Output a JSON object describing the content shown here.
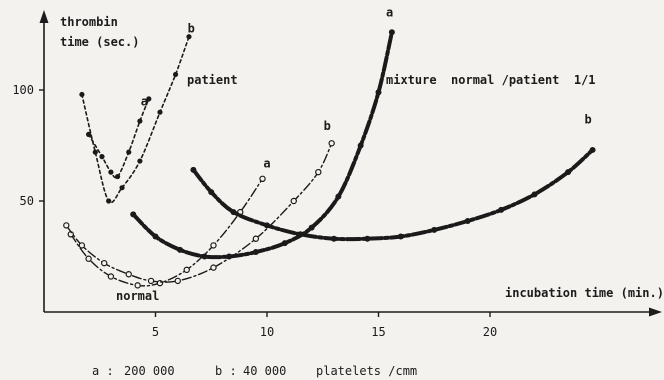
{
  "chart_data": {
    "type": "line",
    "ylabel_line1": "thrombin",
    "ylabel_line2": "time (sec.)",
    "xlabel": "incubation time (min.)",
    "x_ticks": [
      "5",
      "10",
      "15",
      "20"
    ],
    "y_ticks": [
      "50",
      "100"
    ],
    "xlim": [
      0,
      26
    ],
    "ylim": [
      0,
      120
    ],
    "grid": false,
    "legend_note": {
      "a_key": "a :",
      "a_value": "200 000",
      "b_key": "b :",
      "b_value": "40 000",
      "unit": "platelets /cmm"
    },
    "group_labels": {
      "patient": "patient",
      "normal": "normal",
      "mixture": "mixture  normal /patient  1/1"
    },
    "series": [
      {
        "name": "a",
        "group": "patient",
        "style": "dotted",
        "label_at": [
          4.5,
          93
        ],
        "points": [
          [
            2.0,
            80
          ],
          [
            2.6,
            70
          ],
          [
            3.0,
            63
          ],
          [
            3.3,
            61
          ],
          [
            3.8,
            72
          ],
          [
            4.3,
            86
          ],
          [
            4.7,
            96
          ]
        ]
      },
      {
        "name": "b",
        "group": "patient",
        "style": "dotted",
        "label_at": [
          6.6,
          126
        ],
        "points": [
          [
            1.7,
            98
          ],
          [
            2.3,
            72
          ],
          [
            2.9,
            50
          ],
          [
            3.5,
            56
          ],
          [
            4.3,
            68
          ],
          [
            5.2,
            90
          ],
          [
            5.9,
            107
          ],
          [
            6.5,
            124
          ]
        ]
      },
      {
        "name": "a",
        "group": "normal",
        "style": "dashdot",
        "label_at": [
          10.0,
          65
        ],
        "points": [
          [
            1.2,
            35
          ],
          [
            2.0,
            24
          ],
          [
            3.0,
            16
          ],
          [
            4.2,
            12
          ],
          [
            5.2,
            13
          ],
          [
            6.4,
            19
          ],
          [
            7.6,
            30
          ],
          [
            8.8,
            45
          ],
          [
            9.8,
            60
          ]
        ]
      },
      {
        "name": "b",
        "group": "normal",
        "style": "dashdot",
        "label_at": [
          12.7,
          82
        ],
        "points": [
          [
            1.0,
            39
          ],
          [
            1.7,
            30
          ],
          [
            2.7,
            22
          ],
          [
            3.8,
            17
          ],
          [
            4.8,
            14
          ],
          [
            6.0,
            14
          ],
          [
            7.6,
            20
          ],
          [
            9.5,
            33
          ],
          [
            11.2,
            50
          ],
          [
            12.3,
            63
          ],
          [
            12.9,
            76
          ]
        ]
      },
      {
        "name": "a",
        "group": "mixture",
        "style": "heavy",
        "label_at": [
          15.5,
          133
        ],
        "points": [
          [
            4.0,
            44
          ],
          [
            5.0,
            34
          ],
          [
            6.1,
            28
          ],
          [
            7.2,
            25
          ],
          [
            8.3,
            25
          ],
          [
            9.5,
            27
          ],
          [
            10.8,
            31
          ],
          [
            12.0,
            38
          ],
          [
            13.2,
            52
          ],
          [
            14.2,
            75
          ],
          [
            15.0,
            99
          ],
          [
            15.6,
            126
          ]
        ]
      },
      {
        "name": "b",
        "group": "mixture",
        "style": "heavy",
        "label_at": [
          24.4,
          85
        ],
        "points": [
          [
            6.7,
            64
          ],
          [
            7.5,
            54
          ],
          [
            8.5,
            45
          ],
          [
            10.0,
            39
          ],
          [
            11.5,
            35
          ],
          [
            13.0,
            33
          ],
          [
            14.5,
            33
          ],
          [
            16.0,
            34
          ],
          [
            17.5,
            37
          ],
          [
            19.0,
            41
          ],
          [
            20.5,
            46
          ],
          [
            22.0,
            53
          ],
          [
            23.5,
            63
          ],
          [
            24.6,
            73
          ]
        ]
      }
    ]
  }
}
